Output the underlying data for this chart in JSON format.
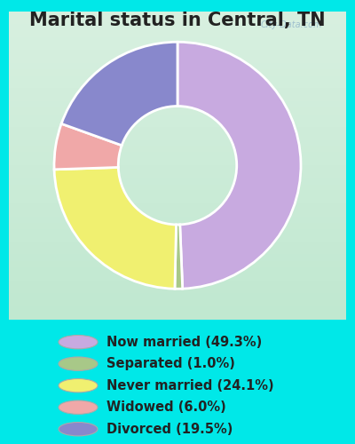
{
  "title": "Marital status in Central, TN",
  "slices": [
    49.3,
    1.0,
    24.1,
    6.0,
    19.5
  ],
  "labels": [
    "Now married (49.3%)",
    "Separated (1.0%)",
    "Never married (24.1%)",
    "Widowed (6.0%)",
    "Divorced (19.5%)"
  ],
  "colors": [
    "#c8aae0",
    "#a8c888",
    "#f0f070",
    "#f0a8a8",
    "#8888cc"
  ],
  "background_color": "#00e8e8",
  "chart_bg_top": "#c8e8d8",
  "chart_bg_bottom": "#e8f8e8",
  "title_fontsize": 15,
  "title_color": "#222222",
  "legend_fontsize": 10.5,
  "legend_color": "#222222",
  "watermark": "City-Data.com",
  "startangle": 90,
  "donut_width": 0.52
}
